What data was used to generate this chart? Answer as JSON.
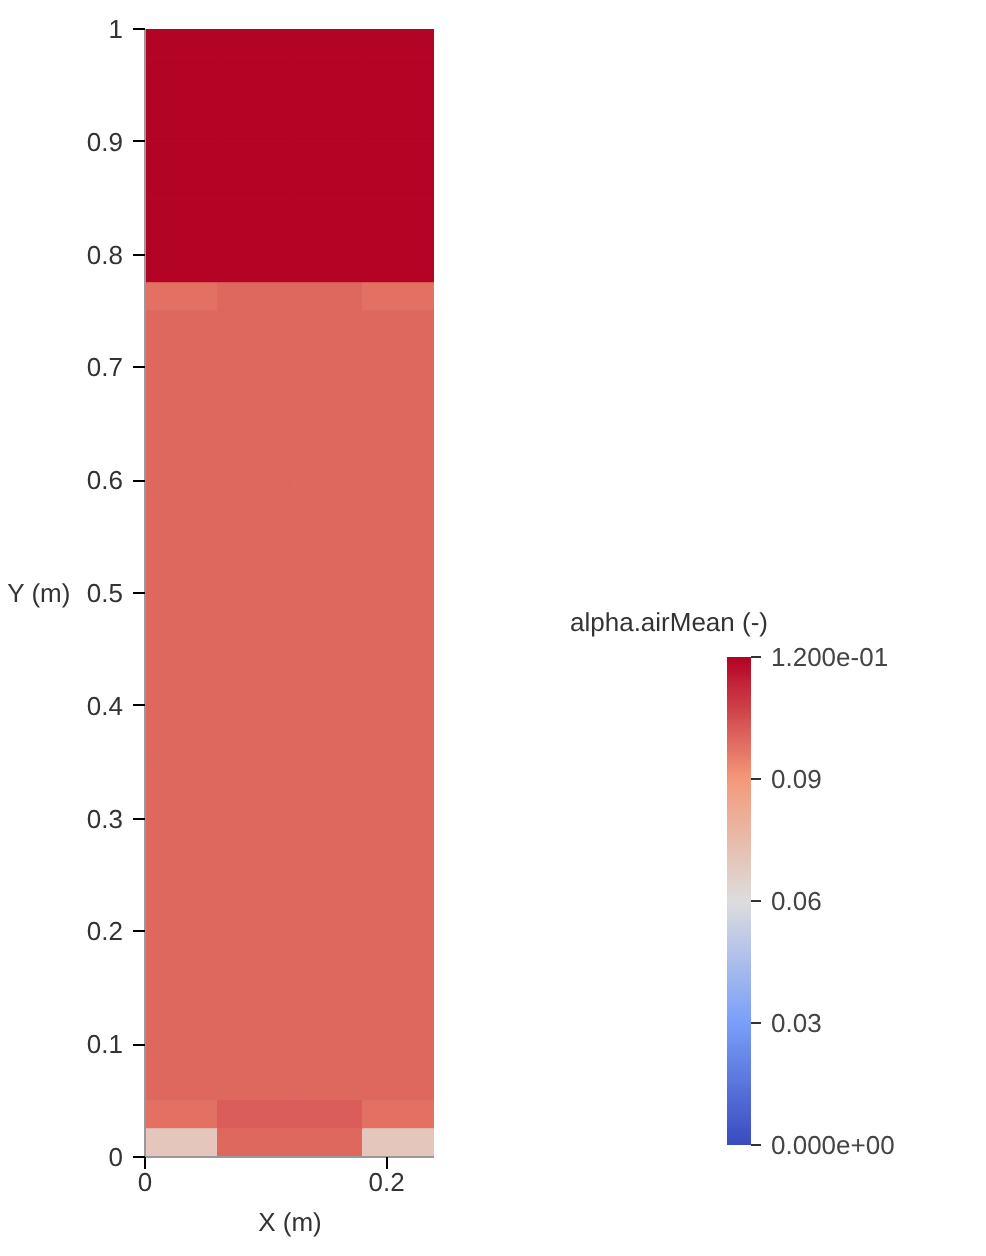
{
  "chart_data": {
    "type": "heatmap",
    "xlabel": "X (m)",
    "ylabel": "Y (m)",
    "clabel": "alpha.airMean (-)",
    "xlim": [
      0,
      0.24
    ],
    "ylim": [
      0,
      1
    ],
    "xticks": [
      0,
      0.2
    ],
    "yticks": [
      0,
      0.1,
      0.2,
      0.3,
      0.4,
      0.5,
      0.6,
      0.7,
      0.8,
      0.9,
      1
    ],
    "clim": [
      0,
      0.12
    ],
    "grid": false,
    "cticks": [
      {
        "value": 0,
        "label": "0.000e+00"
      },
      0.03,
      0.06,
      0.09,
      {
        "value": 0.12,
        "label": "1.200e-01"
      }
    ],
    "cells": [
      [
        0.12,
        0.12,
        0.12,
        0.12
      ],
      [
        0.12,
        0.12,
        0.12,
        0.12
      ],
      [
        0.12,
        0.12,
        0.12,
        0.12
      ],
      [
        0.12,
        0.12,
        0.12,
        0.12
      ],
      [
        0.12,
        0.12,
        0.12,
        0.12
      ],
      [
        0.12,
        0.12,
        0.12,
        0.12
      ],
      [
        0.12,
        0.12,
        0.12,
        0.12
      ],
      [
        0.12,
        0.12,
        0.12,
        0.12
      ],
      [
        0.12,
        0.12,
        0.12,
        0.12
      ],
      [
        0.098,
        0.1,
        0.1,
        0.098
      ],
      [
        0.1,
        0.1,
        0.1,
        0.1
      ],
      [
        0.1,
        0.1,
        0.1,
        0.1
      ],
      [
        0.1,
        0.1,
        0.1,
        0.1
      ],
      [
        0.1,
        0.1,
        0.1,
        0.1
      ],
      [
        0.1,
        0.1,
        0.1,
        0.1
      ],
      [
        0.1,
        0.1,
        0.1,
        0.1
      ],
      [
        0.1,
        0.1,
        0.1,
        0.1
      ],
      [
        0.1,
        0.1,
        0.1,
        0.1
      ],
      [
        0.1,
        0.1,
        0.1,
        0.1
      ],
      [
        0.1,
        0.1,
        0.1,
        0.1
      ],
      [
        0.1,
        0.1,
        0.1,
        0.1
      ],
      [
        0.1,
        0.1,
        0.1,
        0.1
      ],
      [
        0.1,
        0.1,
        0.1,
        0.1
      ],
      [
        0.1,
        0.1,
        0.1,
        0.1
      ],
      [
        0.1,
        0.1,
        0.1,
        0.1
      ],
      [
        0.1,
        0.1,
        0.1,
        0.1
      ],
      [
        0.1,
        0.1,
        0.1,
        0.1
      ],
      [
        0.1,
        0.1,
        0.1,
        0.1
      ],
      [
        0.1,
        0.1,
        0.1,
        0.1
      ],
      [
        0.1,
        0.1,
        0.1,
        0.1
      ],
      [
        0.1,
        0.1,
        0.1,
        0.1
      ],
      [
        0.1,
        0.1,
        0.1,
        0.1
      ],
      [
        0.1,
        0.1,
        0.1,
        0.1
      ],
      [
        0.1,
        0.1,
        0.1,
        0.1
      ],
      [
        0.1,
        0.1,
        0.1,
        0.1
      ],
      [
        0.1,
        0.1,
        0.1,
        0.1
      ],
      [
        0.1,
        0.1,
        0.1,
        0.1
      ],
      [
        0.1,
        0.1,
        0.1,
        0.1
      ],
      [
        0.098,
        0.102,
        0.102,
        0.098
      ],
      [
        0.07,
        0.1,
        0.1,
        0.07
      ]
    ]
  }
}
